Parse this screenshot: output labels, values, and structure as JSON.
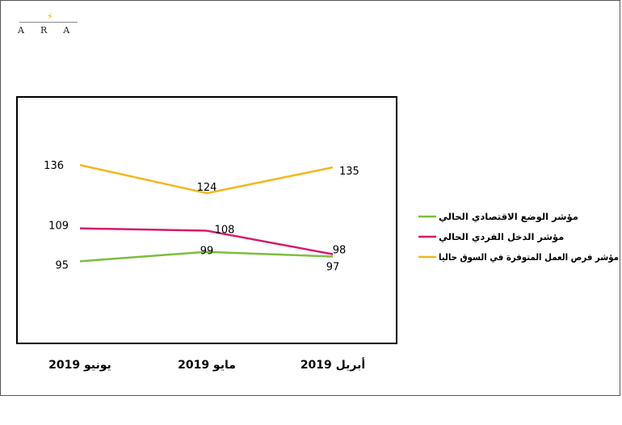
{
  "logo": {
    "text": "ARA",
    "bolt": "⚡"
  },
  "colors": {
    "green": "#7cbf3d",
    "pink": "#d6196b",
    "yellow": "#f2b81e"
  },
  "chart_data": {
    "type": "line",
    "categories": [
      "أبريل 2019",
      "مايو 2019",
      "يونيو 2019"
    ],
    "series": [
      {
        "name": "مؤشر الوضع الاقتصادي الحالي",
        "color": "#7cbf3d",
        "values": [
          97,
          99,
          95
        ]
      },
      {
        "name": "مؤشر الدخل الفردي الحالي",
        "color": "#d6196b",
        "values": [
          98,
          108,
          109
        ]
      },
      {
        "name": "مؤشر فرص العمل المتوفرة في السوق حاليا",
        "color": "#f2b81e",
        "values": [
          135,
          124,
          136
        ]
      }
    ],
    "ylim": [
      60,
      165
    ],
    "grid": false,
    "legend": "right",
    "x_direction": "right-to-left"
  }
}
